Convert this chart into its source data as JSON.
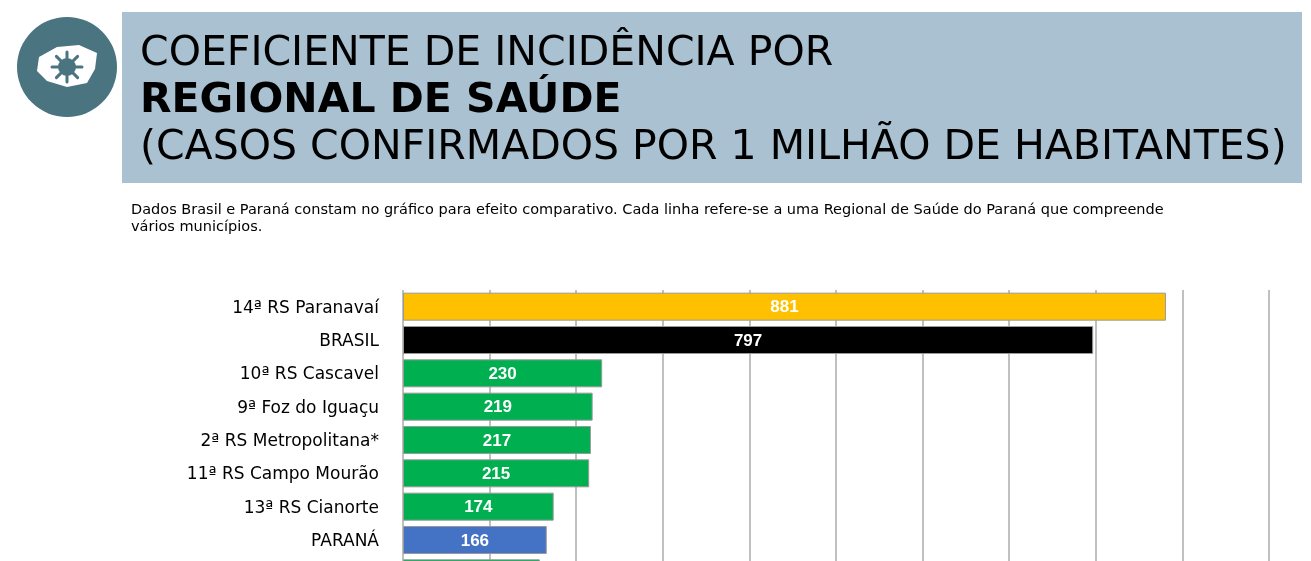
{
  "chart_data": {
    "type": "bar",
    "orientation": "horizontal",
    "title": "COEFICIENTE DE INCIDÊNCIA POR\nREGIONAL DE SAÚDE\n(CASOS CONFIRMADOS POR 1 MILHÃO DE HABITANTES)",
    "subtitle": "Dados Brasil e Paraná constam no gráfico para efeito comparativo. Cada linha refere-se a uma Regional de Saúde do Paraná que compreende vários municípios.",
    "categories": [
      "14ª RS Paranavaí",
      "BRASIL",
      "10ª RS Cascavel",
      "9ª Foz do Iguaçu",
      "2ª RS Metropolitana*",
      "11ª RS Campo Mourão",
      "13ª RS Cianorte",
      "PARANÁ",
      null
    ],
    "values": [
      881,
      797,
      230,
      219,
      217,
      215,
      174,
      166,
      158
    ],
    "value_labels": [
      "881",
      "797",
      "230",
      "219",
      "217",
      "215",
      "174",
      "166",
      null
    ],
    "colors": [
      "#ffc000",
      "#000000",
      "#00b050",
      "#00b050",
      "#00b050",
      "#00b050",
      "#00b050",
      "#4472c4",
      "#00b050"
    ],
    "xlim": [
      0,
      1000
    ],
    "xticks": [
      {
        "value": 0,
        "label": null
      },
      {
        "value": 100,
        "label": null
      },
      {
        "value": 200,
        "label": null
      },
      {
        "value": 300,
        "label": null
      },
      {
        "value": 400,
        "label": null
      },
      {
        "value": 500,
        "label": null
      },
      {
        "value": 600,
        "label": null
      },
      {
        "value": 700,
        "label": null
      },
      {
        "value": 800,
        "label": null
      },
      {
        "value": 900,
        "label": null
      },
      {
        "value": 1000,
        "label": null
      }
    ],
    "grid": "x",
    "tick_labels": "y"
  }
}
